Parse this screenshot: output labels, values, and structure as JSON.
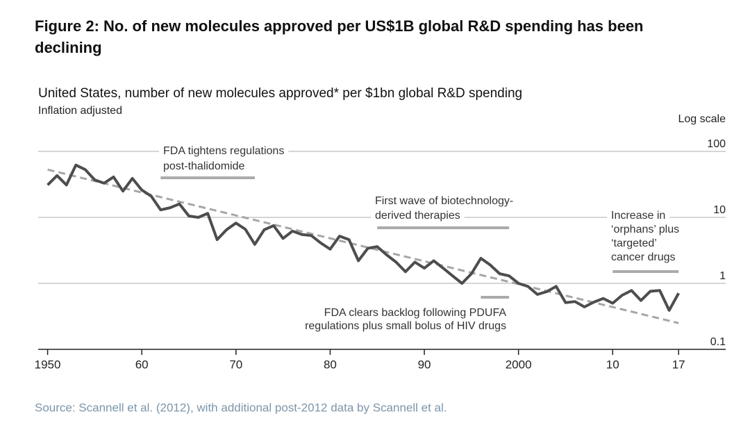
{
  "chart_data": {
    "type": "line",
    "title": "Figure 2: No. of new molecules approved per US$1B global R&D spending has been declining",
    "subtitle": "United States, number of new molecules approved* per $1bn global R&D spending",
    "note": "Inflation adjusted",
    "y_scale_label": "Log scale",
    "source": "Source: Scannell et al. (2012), with additional post-2012 data by Scannell et al.",
    "log_y": true,
    "grid": true,
    "xlim": [
      1949,
      2022
    ],
    "ylim": [
      0.1,
      100
    ],
    "xticks": [
      1950,
      {
        "value": 1960,
        "label": "60"
      },
      {
        "value": 1970,
        "label": "70"
      },
      {
        "value": 1980,
        "label": "80"
      },
      {
        "value": 1990,
        "label": "90"
      },
      2000,
      {
        "value": 2010,
        "label": "10"
      },
      {
        "value": 2017,
        "label": "17"
      }
    ],
    "yticks": [
      0.1,
      1,
      10,
      100
    ],
    "series": [
      {
        "color": "#4d4d4d",
        "dashed": false,
        "x": [
          1950,
          1951,
          1952,
          1953,
          1954,
          1955,
          1956,
          1957,
          1958,
          1959,
          1960,
          1961,
          1962,
          1963,
          1964,
          1965,
          1966,
          1967,
          1968,
          1969,
          1970,
          1971,
          1972,
          1973,
          1974,
          1975,
          1976,
          1977,
          1978,
          1979,
          1980,
          1981,
          1982,
          1983,
          1984,
          1985,
          1986,
          1987,
          1988,
          1989,
          1990,
          1991,
          1992,
          1993,
          1994,
          1995,
          1996,
          1997,
          1998,
          1999,
          2000,
          2001,
          2002,
          2003,
          2004,
          2005,
          2006,
          2007,
          2008,
          2009,
          2010,
          2011,
          2012,
          2013,
          2014,
          2015,
          2016,
          2017
        ],
        "values": [
          31,
          43,
          31,
          62,
          53,
          37,
          33,
          41,
          25,
          39,
          26,
          21,
          13,
          14,
          16,
          10.5,
          10,
          11.5,
          4.6,
          6.5,
          8.2,
          6.6,
          3.9,
          6.5,
          7.5,
          4.8,
          6.2,
          5.5,
          5.3,
          4.1,
          3.3,
          5.2,
          4.6,
          2.2,
          3.4,
          3.6,
          2.7,
          2.1,
          1.5,
          2.1,
          1.7,
          2.2,
          1.7,
          1.3,
          1.0,
          1.4,
          2.4,
          1.9,
          1.4,
          1.3,
          1.0,
          0.9,
          0.68,
          0.75,
          0.9,
          0.51,
          0.53,
          0.44,
          0.52,
          0.59,
          0.5,
          0.66,
          0.78,
          0.55,
          0.76,
          0.78,
          0.39,
          0.71
        ]
      },
      {
        "color": "#a6a6a6",
        "dashed": true,
        "x": [
          1950,
          2017
        ],
        "values": [
          53,
          0.25
        ]
      }
    ],
    "annotations": [
      {
        "lines": [
          "FDA tightens regulations",
          "post-thalidomide"
        ],
        "span": [
          1962,
          1972
        ]
      },
      {
        "lines": [
          "First wave of biotechnology-",
          "derived therapies"
        ],
        "span": [
          1985,
          1999
        ]
      },
      {
        "lines": [
          "FDA clears backlog following PDUFA",
          "regulations plus small bolus of HIV drugs"
        ],
        "span": [
          1996,
          1999
        ]
      },
      {
        "lines": [
          "Increase in",
          "‘orphans’ plus",
          "‘targeted’",
          "cancer drugs"
        ],
        "span": [
          2010,
          2017
        ]
      }
    ]
  }
}
